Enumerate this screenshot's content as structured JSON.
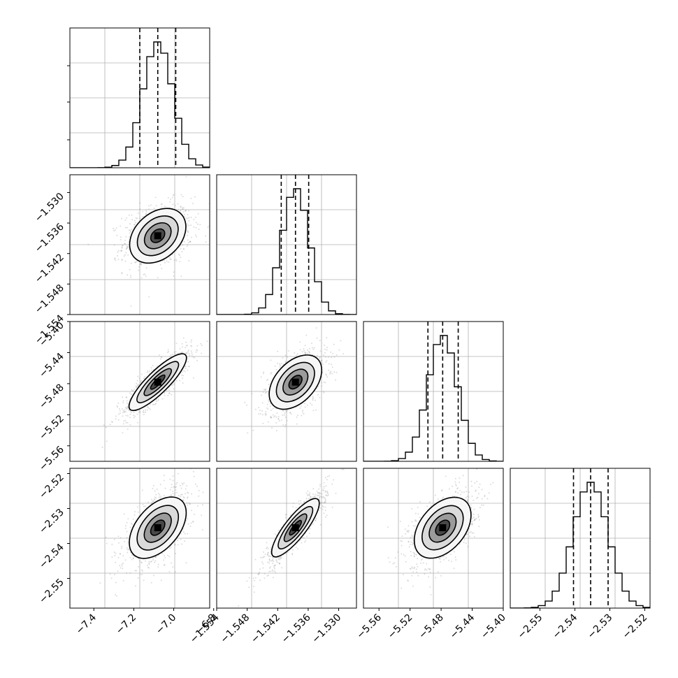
{
  "chart_data": {
    "type": "corner",
    "parameters": [
      {
        "range": [
          -7.52,
          -6.82
        ],
        "xticks": [
          -7.4,
          -7.2,
          -7.0,
          -6.8
        ],
        "xtick_labels": [
          "−7.4",
          "−7.2",
          "−7.0",
          "−6.8"
        ],
        "quantiles": [
          -7.17,
          -7.08,
          -6.99
        ],
        "median": -7.08,
        "sigma": 0.075
      },
      {
        "range": [
          -1.554,
          -1.5265
        ],
        "ticks": [
          -1.554,
          -1.548,
          -1.542,
          -1.536,
          -1.53
        ],
        "tick_labels": [
          "−1.554",
          "−1.548",
          "−1.542",
          "−1.536",
          "−1.530"
        ],
        "ytick_labels_rows": [
          "−1.530",
          "−1.536",
          "−1.542",
          "−1.548",
          "−1.554"
        ],
        "quantiles": [
          -1.5413,
          -1.5385,
          -1.5359
        ],
        "median": -1.5385,
        "sigma": 0.0027
      },
      {
        "range": [
          -5.58,
          -5.4
        ],
        "ticks": [
          -5.56,
          -5.52,
          -5.48,
          -5.44,
          -5.4
        ],
        "tick_labels": [
          "−5.56",
          "−5.52",
          "−5.48",
          "−5.44",
          "−5.40"
        ],
        "ytick_labels_rows": [
          "−5.40",
          "−5.44",
          "−5.48",
          "−5.52",
          "−5.56"
        ],
        "quantiles": [
          -5.497,
          -5.478,
          -5.458
        ],
        "median": -5.478,
        "sigma": 0.019
      },
      {
        "range": [
          -2.5585,
          -2.5185
        ],
        "ticks": [
          -2.55,
          -2.54,
          -2.53,
          -2.52
        ],
        "tick_labels": [
          "−2.55",
          "−2.54",
          "−2.53",
          "−2.52"
        ],
        "ytick_labels_rows": [
          "−2.52",
          "−2.53",
          "−2.54",
          "−2.55"
        ],
        "quantiles": [
          -2.5404,
          -2.5355,
          -2.5305
        ],
        "median": -2.5355,
        "sigma": 0.005
      }
    ],
    "correlations": [
      [
        1.0,
        0.25,
        0.85,
        0.6
      ],
      [
        0.25,
        1.0,
        0.5,
        0.9
      ],
      [
        0.85,
        0.5,
        1.0,
        0.55
      ],
      [
        0.6,
        0.9,
        0.55,
        1.0
      ]
    ],
    "histogram_bins": 20,
    "grid": true,
    "quantile_line_style": "dashed"
  }
}
